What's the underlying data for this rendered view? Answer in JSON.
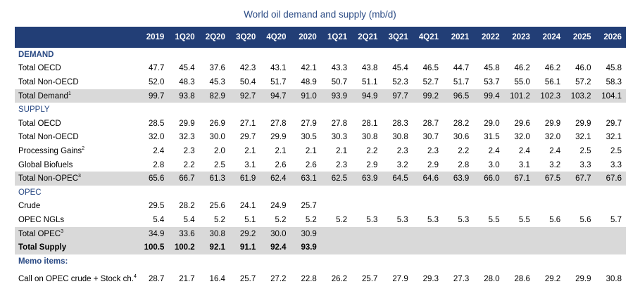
{
  "title": "World oil demand and supply (mb/d)",
  "columns": [
    "2019",
    "1Q20",
    "2Q20",
    "3Q20",
    "4Q20",
    "2020",
    "1Q21",
    "2Q21",
    "3Q21",
    "4Q21",
    "2021",
    "2022",
    "2023",
    "2024",
    "2025",
    "2026"
  ],
  "rows": [
    {
      "label": "DEMAND",
      "sup": "",
      "style": "section-bold",
      "values": []
    },
    {
      "label": "Total OECD",
      "sup": "",
      "style": "normal",
      "values": [
        "47.7",
        "45.4",
        "37.6",
        "42.3",
        "43.1",
        "42.1",
        "43.3",
        "43.8",
        "45.4",
        "46.5",
        "44.7",
        "45.8",
        "46.2",
        "46.2",
        "46.0",
        "45.8"
      ]
    },
    {
      "label": "Total Non-OECD",
      "sup": "",
      "style": "normal",
      "values": [
        "52.0",
        "48.3",
        "45.3",
        "50.4",
        "51.7",
        "48.9",
        "50.7",
        "51.1",
        "52.3",
        "52.7",
        "51.7",
        "53.7",
        "55.0",
        "56.1",
        "57.2",
        "58.3"
      ]
    },
    {
      "label": "Total Demand",
      "sup": "1",
      "style": "shade",
      "values": [
        "99.7",
        "93.8",
        "82.9",
        "92.7",
        "94.7",
        "91.0",
        "93.9",
        "94.9",
        "97.7",
        "99.2",
        "96.5",
        "99.4",
        "101.2",
        "102.3",
        "103.2",
        "104.1"
      ]
    },
    {
      "label": "SUPPLY",
      "sup": "",
      "style": "section",
      "values": []
    },
    {
      "label": "Total OECD",
      "sup": "",
      "style": "normal",
      "values": [
        "28.5",
        "29.9",
        "26.9",
        "27.1",
        "27.8",
        "27.9",
        "27.8",
        "28.1",
        "28.3",
        "28.7",
        "28.2",
        "29.0",
        "29.6",
        "29.9",
        "29.9",
        "29.7"
      ]
    },
    {
      "label": "Total Non-OECD",
      "sup": "",
      "style": "normal",
      "values": [
        "32.0",
        "32.3",
        "30.0",
        "29.7",
        "29.9",
        "30.5",
        "30.3",
        "30.8",
        "30.8",
        "30.7",
        "30.6",
        "31.5",
        "32.0",
        "32.0",
        "32.1",
        "32.1"
      ]
    },
    {
      "label": "Processing Gains",
      "sup": "2",
      "style": "normal",
      "values": [
        "2.4",
        "2.3",
        "2.0",
        "2.1",
        "2.1",
        "2.1",
        "2.1",
        "2.2",
        "2.3",
        "2.3",
        "2.2",
        "2.4",
        "2.4",
        "2.4",
        "2.5",
        "2.5"
      ]
    },
    {
      "label": "Global Biofuels",
      "sup": "",
      "style": "normal",
      "values": [
        "2.8",
        "2.2",
        "2.5",
        "3.1",
        "2.6",
        "2.6",
        "2.3",
        "2.9",
        "3.2",
        "2.9",
        "2.8",
        "3.0",
        "3.1",
        "3.2",
        "3.3",
        "3.3"
      ]
    },
    {
      "label": "Total Non-OPEC",
      "sup": "3",
      "style": "shade",
      "values": [
        "65.6",
        "66.7",
        "61.3",
        "61.9",
        "62.4",
        "63.1",
        "62.5",
        "63.9",
        "64.5",
        "64.6",
        "63.9",
        "66.0",
        "67.1",
        "67.5",
        "67.7",
        "67.6"
      ]
    },
    {
      "label": "OPEC",
      "sup": "",
      "style": "section",
      "values": []
    },
    {
      "label": "Crude",
      "sup": "",
      "style": "normal",
      "values": [
        "29.5",
        "28.2",
        "25.6",
        "24.1",
        "24.9",
        "25.7",
        "",
        "",
        "",
        "",
        "",
        "",
        "",
        "",
        "",
        ""
      ]
    },
    {
      "label": "OPEC NGLs",
      "sup": "",
      "style": "normal",
      "values": [
        "5.4",
        "5.4",
        "5.2",
        "5.1",
        "5.2",
        "5.2",
        "5.2",
        "5.3",
        "5.3",
        "5.3",
        "5.3",
        "5.5",
        "5.5",
        "5.6",
        "5.6",
        "5.7"
      ]
    },
    {
      "label": "Total OPEC",
      "sup": "3",
      "style": "shade",
      "values": [
        "34.9",
        "33.6",
        "30.8",
        "29.2",
        "30.0",
        "30.9",
        "",
        "",
        "",
        "",
        "",
        "",
        "",
        "",
        "",
        ""
      ]
    },
    {
      "label": "Total Supply",
      "sup": "",
      "style": "shade-bold",
      "values": [
        "100.5",
        "100.2",
        "92.1",
        "91.1",
        "92.4",
        "93.9",
        "",
        "",
        "",
        "",
        "",
        "",
        "",
        "",
        "",
        ""
      ]
    },
    {
      "label": "Memo items:",
      "sup": "",
      "style": "section-bold",
      "values": []
    },
    {
      "label": "Call on OPEC crude + Stock ch.",
      "sup": "4",
      "style": "tall",
      "values": [
        "28.7",
        "21.7",
        "16.4",
        "25.7",
        "27.2",
        "22.8",
        "26.2",
        "25.7",
        "27.9",
        "29.3",
        "27.3",
        "28.0",
        "28.6",
        "29.2",
        "29.9",
        "30.8"
      ]
    }
  ]
}
